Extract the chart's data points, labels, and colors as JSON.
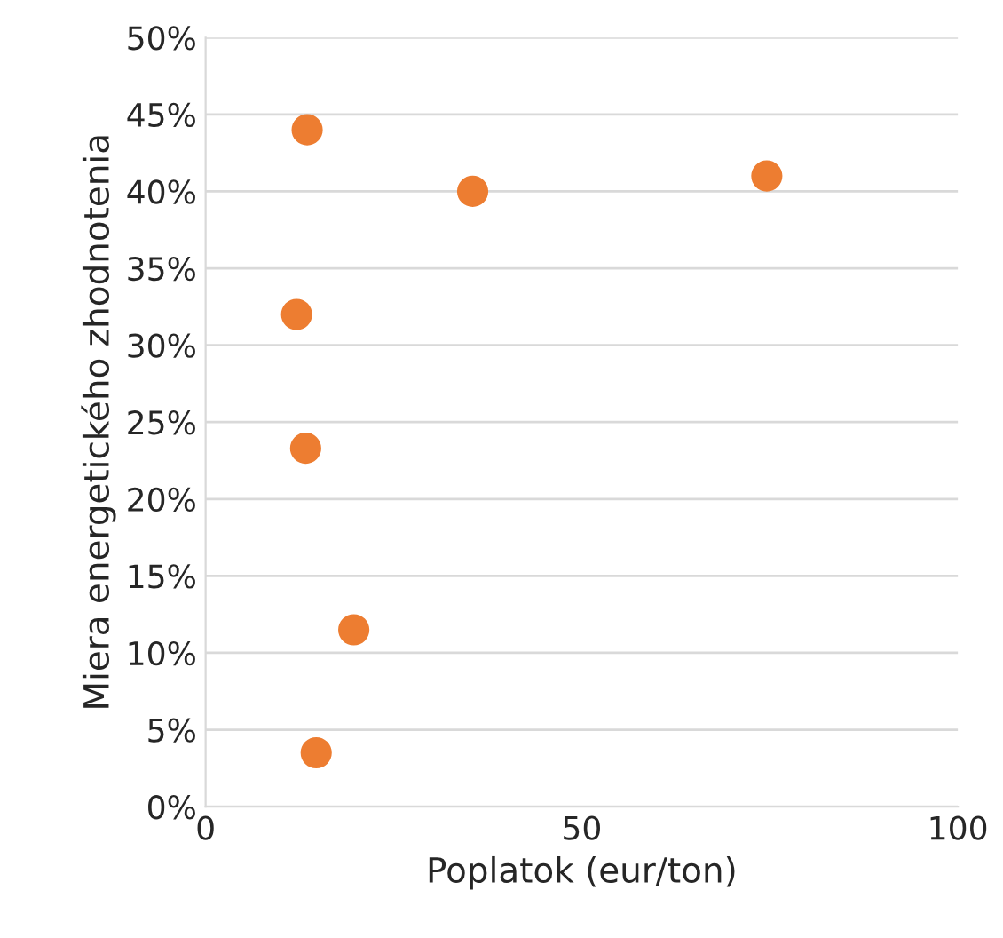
{
  "chart_data": {
    "type": "scatter",
    "xlabel": "Poplatok (eur/ton)",
    "ylabel": "Miera energetického zhodnotenia",
    "x": [
      13.5,
      35.5,
      74.6,
      12.1,
      13.3,
      19.7,
      14.7
    ],
    "series": [
      {
        "color": "#ed7d31",
        "values": [
          44,
          40,
          41,
          32,
          23.3,
          11.5,
          3.5
        ]
      }
    ],
    "xlim": [
      0,
      100
    ],
    "xticks": [
      0,
      50,
      100
    ],
    "ylim": [
      0,
      50
    ],
    "yticks": [
      {
        "value": 0,
        "label": "0%"
      },
      {
        "value": 5,
        "label": "5%"
      },
      {
        "value": 10,
        "label": "10%"
      },
      {
        "value": 15,
        "label": "15%"
      },
      {
        "value": 20,
        "label": "20%"
      },
      {
        "value": 25,
        "label": "25%"
      },
      {
        "value": 30,
        "label": "30%"
      },
      {
        "value": 35,
        "label": "35%"
      },
      {
        "value": 40,
        "label": "40%"
      },
      {
        "value": 45,
        "label": "45%"
      },
      {
        "value": 50,
        "label": "50%"
      }
    ],
    "grid": "y",
    "marker": "circle",
    "legend": false
  }
}
